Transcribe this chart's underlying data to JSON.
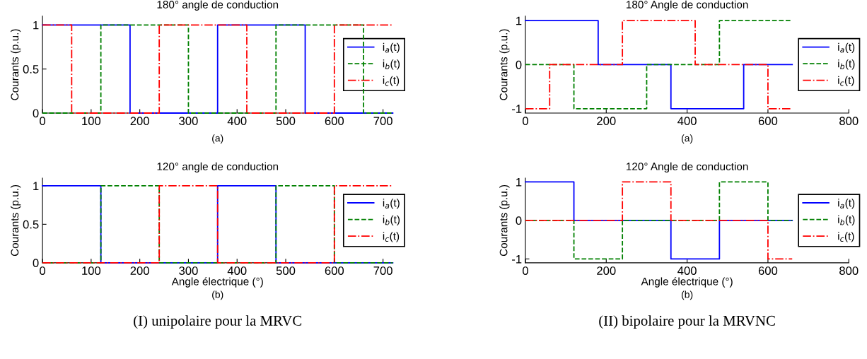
{
  "chart_data": [
    {
      "type": "step",
      "title": "180° angle de conduction",
      "ylabel": "Courants (p.u.)",
      "annotations": [
        "(a)"
      ],
      "xlim": [
        0,
        720
      ],
      "xticks": [
        0,
        100,
        200,
        300,
        400,
        500,
        600,
        700
      ],
      "ylim": [
        0,
        1.1
      ],
      "yticks": [
        0,
        0.5,
        1
      ],
      "legend": "right",
      "grid": false,
      "series": [
        {
          "name": "i$_{a}$(t)",
          "color": "#0000ff",
          "line_style": "solid",
          "x": [
            0,
            180,
            360,
            540,
            720
          ],
          "values": [
            1,
            0,
            1,
            0,
            0
          ]
        },
        {
          "name": "i$_{b}$(t)",
          "color": "#008000",
          "line_style": "dashed",
          "x": [
            0,
            120,
            300,
            480,
            660,
            720
          ],
          "values": [
            0,
            1,
            0,
            1,
            0,
            0
          ]
        },
        {
          "name": "i$_{c}$(t)",
          "color": "#ff0000",
          "line_style": "dashdot",
          "x": [
            0,
            60,
            240,
            420,
            600,
            720
          ],
          "values": [
            1,
            0,
            1,
            0,
            1,
            1
          ]
        }
      ]
    },
    {
      "type": "step",
      "title": "180° Angle de conduction",
      "ylabel": "Courants (p.u.)",
      "annotations": [
        "(a)"
      ],
      "xlim": [
        0,
        800
      ],
      "xticks": [
        0,
        200,
        400,
        600,
        800
      ],
      "ylim": [
        -1.1,
        1.1
      ],
      "yticks": [
        -1,
        0,
        1
      ],
      "legend": "right",
      "grid": false,
      "series": [
        {
          "name": "i$_{a}$(t)",
          "color": "#0000ff",
          "line_style": "solid",
          "x": [
            0,
            180,
            360,
            540,
            660
          ],
          "values": [
            1,
            0,
            -1,
            0,
            0
          ]
        },
        {
          "name": "i$_{b}$(t)",
          "color": "#008000",
          "line_style": "dashed",
          "x": [
            0,
            120,
            300,
            480,
            660
          ],
          "values": [
            0,
            -1,
            0,
            1,
            1
          ]
        },
        {
          "name": "i$_{c}$(t)",
          "color": "#ff0000",
          "line_style": "dashdot",
          "x": [
            0,
            60,
            240,
            420,
            600,
            660
          ],
          "values": [
            -1,
            0,
            1,
            0,
            -1,
            -1
          ]
        }
      ]
    },
    {
      "type": "step",
      "title": "120° angle de conduction",
      "xlabel": "Angle électrique (°)",
      "ylabel": "Courants (p.u.)",
      "annotations": [
        "(b)",
        "(I) unipolaire pour la MRVC"
      ],
      "xlim": [
        0,
        720
      ],
      "xticks": [
        0,
        100,
        200,
        300,
        400,
        500,
        600,
        700
      ],
      "ylim": [
        0,
        1.1
      ],
      "yticks": [
        0,
        0.5,
        1
      ],
      "legend": "right",
      "grid": false,
      "series": [
        {
          "name": "i$_{a}$(t)",
          "color": "#0000ff",
          "line_style": "solid",
          "x": [
            0,
            120,
            360,
            480,
            720
          ],
          "values": [
            1,
            0,
            1,
            0,
            0
          ]
        },
        {
          "name": "i$_{b}$(t)",
          "color": "#008000",
          "line_style": "dashed",
          "x": [
            0,
            120,
            240,
            480,
            600,
            720
          ],
          "values": [
            0,
            1,
            0,
            1,
            0,
            0
          ]
        },
        {
          "name": "i$_{c}$(t)",
          "color": "#ff0000",
          "line_style": "dashdot",
          "x": [
            0,
            240,
            360,
            600,
            720
          ],
          "values": [
            0,
            1,
            0,
            1,
            1
          ]
        }
      ]
    },
    {
      "type": "step",
      "title": "120° Angle de conduction",
      "xlabel": "Angle électrique (°)",
      "ylabel": "Courants (p.u.)",
      "annotations": [
        "(b)",
        "(II) bipolaire pour la MRVNC"
      ],
      "xlim": [
        0,
        800
      ],
      "xticks": [
        0,
        200,
        400,
        600,
        800
      ],
      "ylim": [
        -1.1,
        1.1
      ],
      "yticks": [
        -1,
        0,
        1
      ],
      "legend": "right",
      "grid": false,
      "series": [
        {
          "name": "i$_{a}$(t)",
          "color": "#0000ff",
          "line_style": "solid",
          "x": [
            0,
            120,
            360,
            480,
            660
          ],
          "values": [
            1,
            0,
            -1,
            0,
            0
          ]
        },
        {
          "name": "i$_{b}$(t)",
          "color": "#008000",
          "line_style": "dashed",
          "x": [
            0,
            120,
            240,
            480,
            600,
            660
          ],
          "values": [
            0,
            -1,
            0,
            1,
            0,
            0
          ]
        },
        {
          "name": "i$_{c}$(t)",
          "color": "#ff0000",
          "line_style": "dashdot",
          "x": [
            0,
            240,
            360,
            600,
            660
          ],
          "values": [
            0,
            1,
            0,
            -1,
            -1
          ]
        }
      ]
    }
  ]
}
